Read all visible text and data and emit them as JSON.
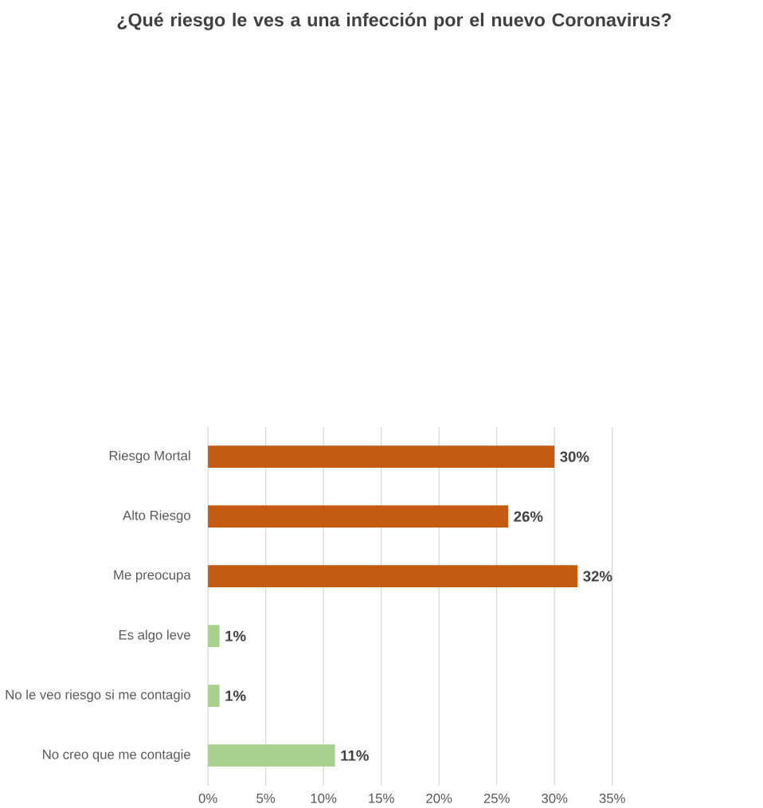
{
  "chart_data": {
    "type": "bar",
    "orientation": "horizontal",
    "title": "¿Qué riesgo le ves a una infección por el nuevo Coronavirus?",
    "categories": [
      "Riesgo Mortal",
      "Alto Riesgo",
      "Me preocupa",
      "Es algo leve",
      "No le veo riesgo si me contagio",
      "No creo que me contagie"
    ],
    "values": [
      30,
      26,
      32,
      1,
      1,
      11
    ],
    "value_labels": [
      "30%",
      "26%",
      "32%",
      "1%",
      "1%",
      "11%"
    ],
    "colors": [
      "#c55a11",
      "#c55a11",
      "#c55a11",
      "#a9d18e",
      "#a9d18e",
      "#a9d18e"
    ],
    "xlim": [
      0,
      35
    ],
    "xticks": [
      {
        "value": 0,
        "label": "0%"
      },
      {
        "value": 5,
        "label": "5%"
      },
      {
        "value": 10,
        "label": "10%"
      },
      {
        "value": 15,
        "label": "15%"
      },
      {
        "value": 20,
        "label": "20%"
      },
      {
        "value": 25,
        "label": "25%"
      },
      {
        "value": 30,
        "label": "30%"
      },
      {
        "value": 35,
        "label": "35%"
      }
    ],
    "grid": "x"
  }
}
